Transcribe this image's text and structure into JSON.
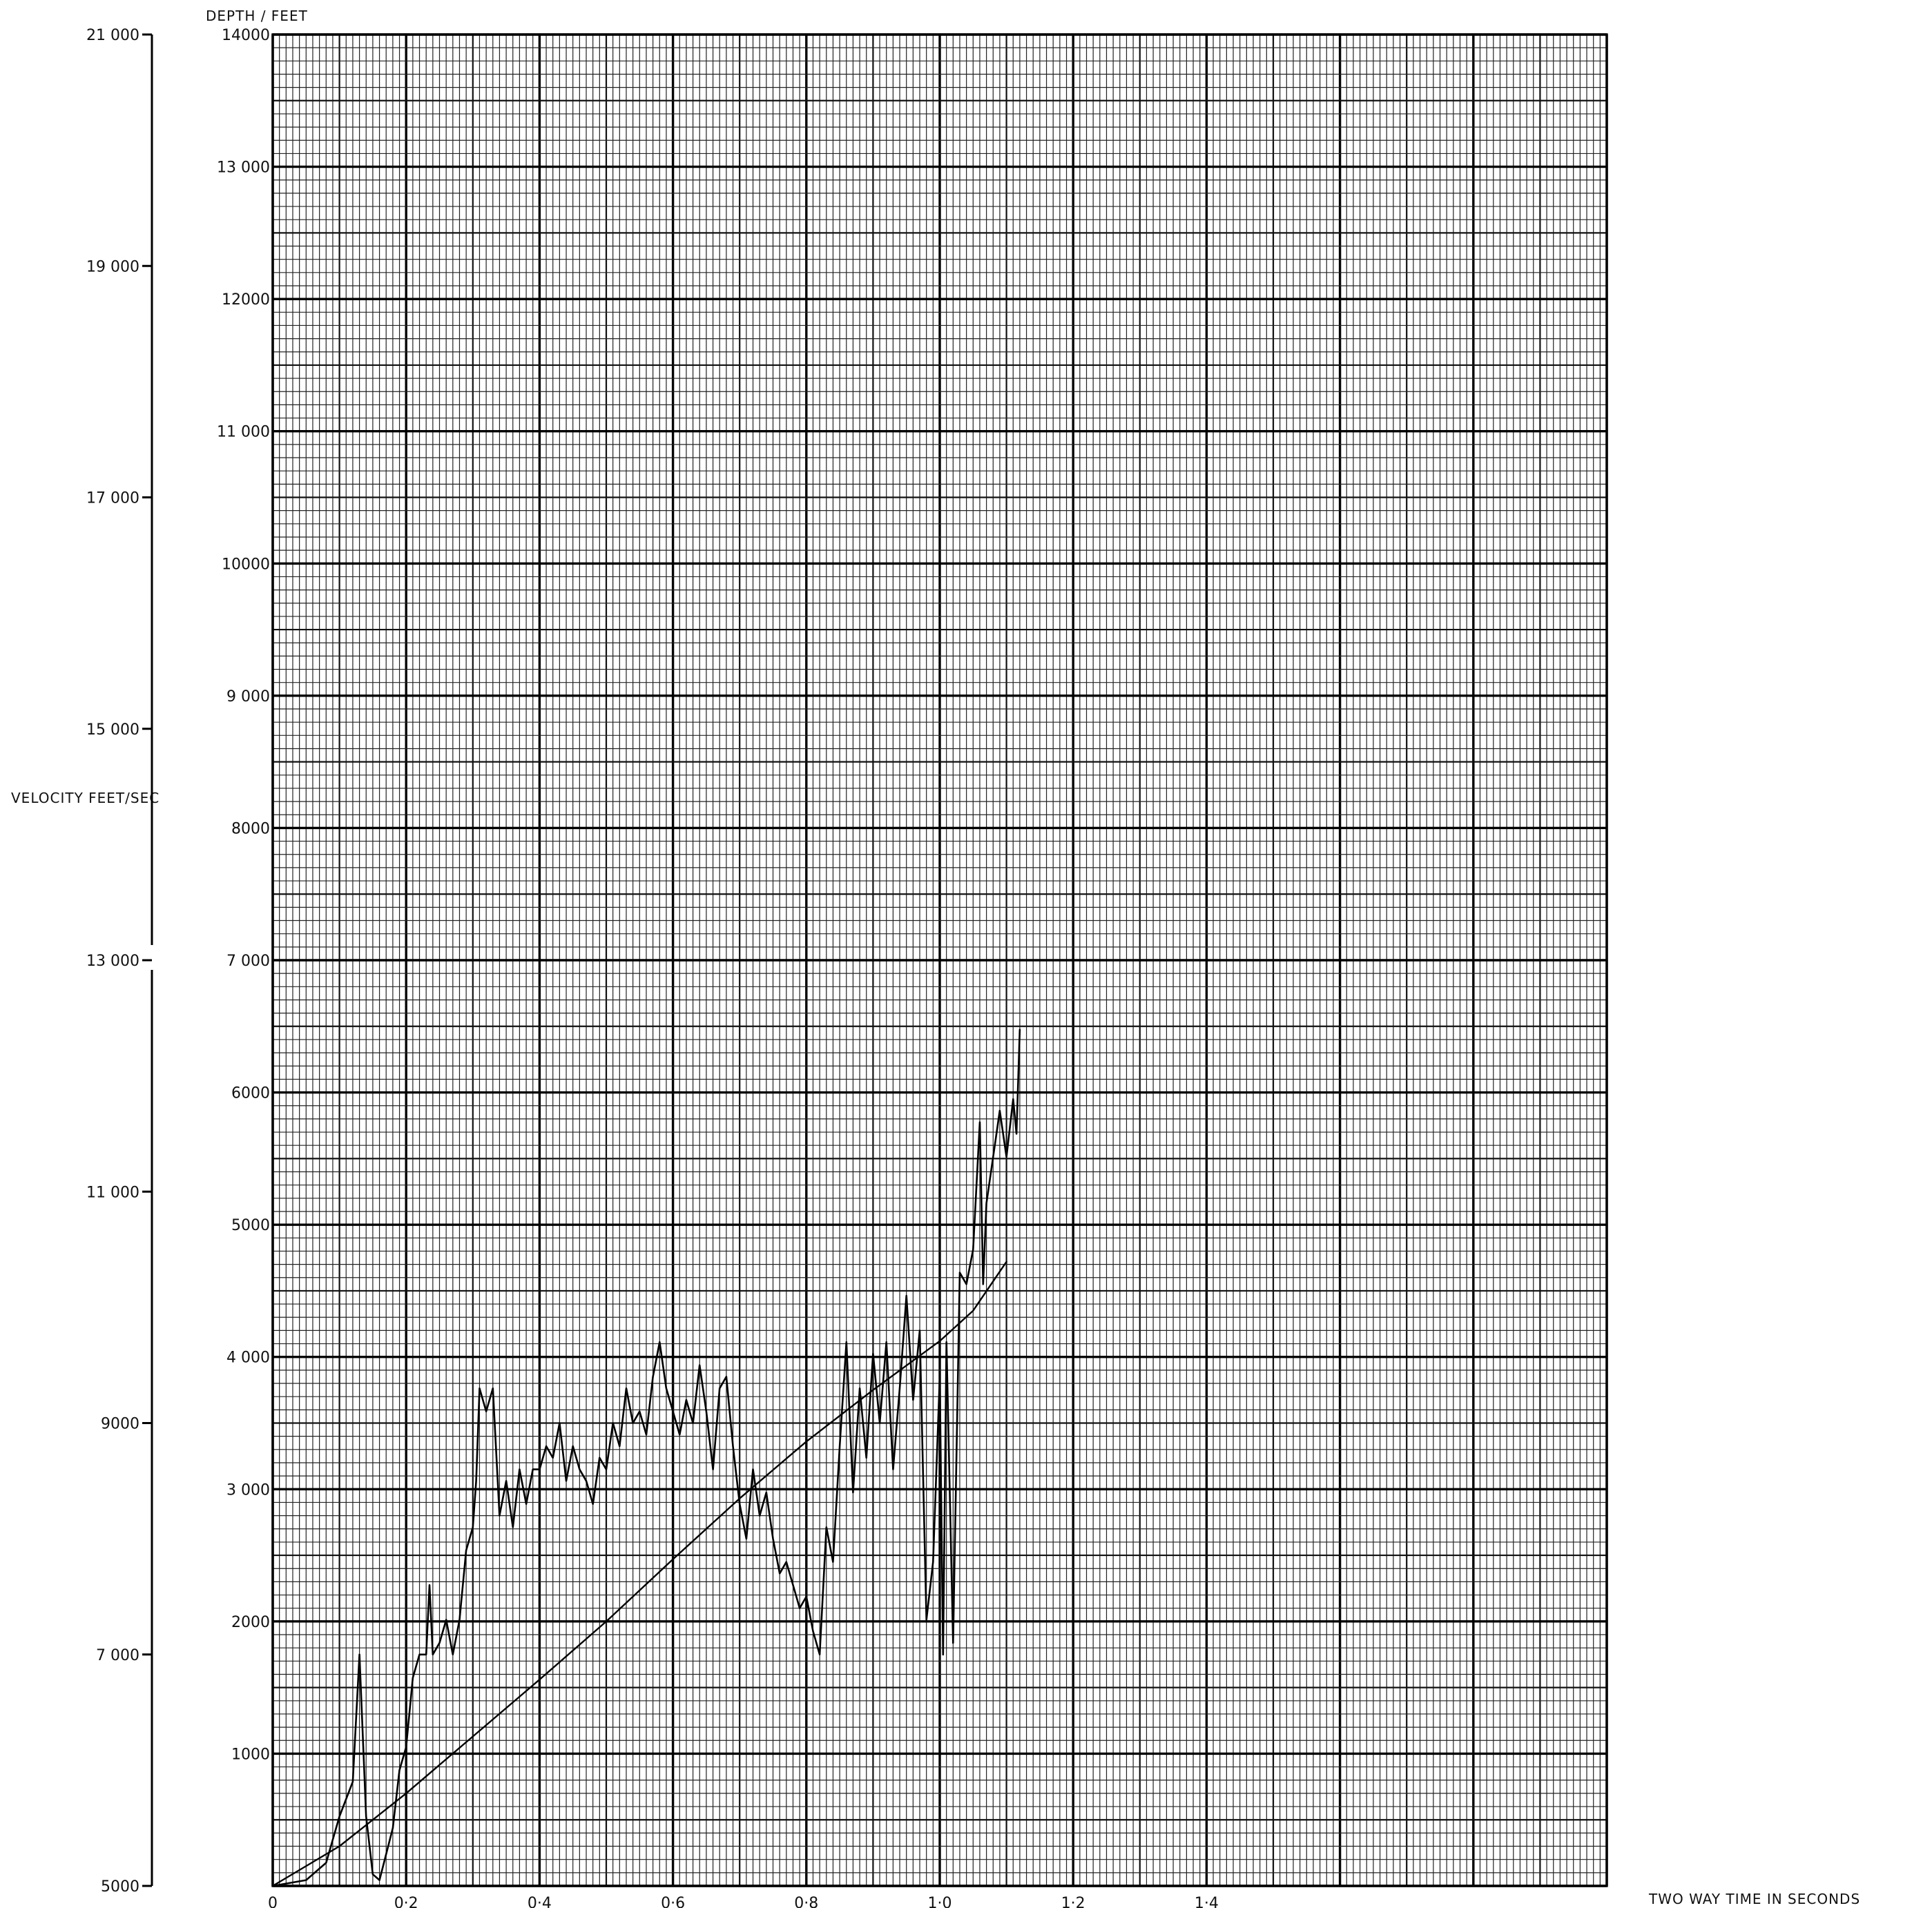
{
  "chart_data": {
    "type": "line",
    "title": "",
    "xlabel": "TWO WAY TIME IN SECONDS",
    "xlim": [
      0,
      2.0
    ],
    "x_ticks": [
      "0",
      "0·2",
      "0·4",
      "0·6",
      "0·8",
      "1·0",
      "1·2",
      "1·4"
    ],
    "x_tick_values": [
      0,
      0.2,
      0.4,
      0.6,
      0.8,
      1.0,
      1.2,
      1.4
    ],
    "grid": true,
    "depth_axis": {
      "label": "DEPTH / FEET",
      "range": [
        0,
        14000
      ],
      "ticks": [
        "1000",
        "2000",
        "3 000",
        "4 000",
        "5000",
        "6000",
        "7 000",
        "8000",
        "9 000",
        "10000",
        "11 000",
        "12000",
        "13 000",
        "14000"
      ],
      "tick_values": [
        1000,
        2000,
        3000,
        4000,
        5000,
        6000,
        7000,
        8000,
        9000,
        10000,
        11000,
        12000,
        13000,
        14000
      ]
    },
    "velocity_axis": {
      "label": "VELOCITY FEET/SEC",
      "range": [
        5000,
        21000
      ],
      "ticks": [
        "5000",
        "7 000",
        "9000",
        "11 000",
        "13 000",
        "15 000",
        "17 000",
        "19 000",
        "21 000"
      ],
      "tick_values": [
        5000,
        7000,
        9000,
        11000,
        13000,
        15000,
        17000,
        19000,
        21000
      ],
      "axis_break_at": 13000
    },
    "series": [
      {
        "axis": "depth",
        "points": [
          [
            0,
            0
          ],
          [
            0.1,
            300
          ],
          [
            0.2,
            700
          ],
          [
            0.3,
            1130
          ],
          [
            0.4,
            1560
          ],
          [
            0.5,
            2000
          ],
          [
            0.6,
            2470
          ],
          [
            0.7,
            2930
          ],
          [
            0.8,
            3360
          ],
          [
            0.9,
            3750
          ],
          [
            1.0,
            4120
          ],
          [
            1.05,
            4350
          ],
          [
            1.1,
            4720
          ]
        ]
      },
      {
        "axis": "velocity",
        "points": [
          [
            0.0,
            5000
          ],
          [
            0.05,
            5050
          ],
          [
            0.08,
            5200
          ],
          [
            0.1,
            5600
          ],
          [
            0.12,
            5900
          ],
          [
            0.13,
            7000
          ],
          [
            0.14,
            5600
          ],
          [
            0.15,
            5100
          ],
          [
            0.16,
            5050
          ],
          [
            0.18,
            5500
          ],
          [
            0.19,
            6000
          ],
          [
            0.2,
            6200
          ],
          [
            0.21,
            6800
          ],
          [
            0.22,
            7000
          ],
          [
            0.23,
            7000
          ],
          [
            0.235,
            7600
          ],
          [
            0.24,
            7000
          ],
          [
            0.25,
            7100
          ],
          [
            0.26,
            7300
          ],
          [
            0.27,
            7000
          ],
          [
            0.28,
            7300
          ],
          [
            0.29,
            7900
          ],
          [
            0.3,
            8100
          ],
          [
            0.305,
            8500
          ],
          [
            0.31,
            9300
          ],
          [
            0.32,
            9100
          ],
          [
            0.33,
            9300
          ],
          [
            0.34,
            8200
          ],
          [
            0.35,
            8500
          ],
          [
            0.36,
            8100
          ],
          [
            0.37,
            8600
          ],
          [
            0.38,
            8300
          ],
          [
            0.39,
            8600
          ],
          [
            0.4,
            8600
          ],
          [
            0.41,
            8800
          ],
          [
            0.42,
            8700
          ],
          [
            0.43,
            9000
          ],
          [
            0.44,
            8500
          ],
          [
            0.45,
            8800
          ],
          [
            0.46,
            8600
          ],
          [
            0.47,
            8500
          ],
          [
            0.48,
            8300
          ],
          [
            0.49,
            8700
          ],
          [
            0.5,
            8600
          ],
          [
            0.51,
            9000
          ],
          [
            0.52,
            8800
          ],
          [
            0.53,
            9300
          ],
          [
            0.54,
            9000
          ],
          [
            0.55,
            9100
          ],
          [
            0.56,
            8900
          ],
          [
            0.57,
            9400
          ],
          [
            0.58,
            9700
          ],
          [
            0.59,
            9300
          ],
          [
            0.6,
            9100
          ],
          [
            0.61,
            8900
          ],
          [
            0.62,
            9200
          ],
          [
            0.63,
            9000
          ],
          [
            0.64,
            9500
          ],
          [
            0.65,
            9100
          ],
          [
            0.66,
            8600
          ],
          [
            0.67,
            9300
          ],
          [
            0.68,
            9400
          ],
          [
            0.69,
            8800
          ],
          [
            0.7,
            8300
          ],
          [
            0.71,
            8000
          ],
          [
            0.72,
            8600
          ],
          [
            0.73,
            8200
          ],
          [
            0.74,
            8400
          ],
          [
            0.75,
            8000
          ],
          [
            0.76,
            7700
          ],
          [
            0.77,
            7800
          ],
          [
            0.78,
            7600
          ],
          [
            0.79,
            7400
          ],
          [
            0.8,
            7500
          ],
          [
            0.81,
            7200
          ],
          [
            0.82,
            7000
          ],
          [
            0.83,
            8100
          ],
          [
            0.84,
            7800
          ],
          [
            0.85,
            8800
          ],
          [
            0.86,
            9700
          ],
          [
            0.87,
            8400
          ],
          [
            0.88,
            9300
          ],
          [
            0.89,
            8700
          ],
          [
            0.9,
            9600
          ],
          [
            0.91,
            9000
          ],
          [
            0.92,
            9700
          ],
          [
            0.93,
            8600
          ],
          [
            0.94,
            9300
          ],
          [
            0.95,
            10100
          ],
          [
            0.96,
            9200
          ],
          [
            0.97,
            9800
          ],
          [
            0.98,
            7300
          ],
          [
            0.99,
            7800
          ],
          [
            1.0,
            9400
          ],
          [
            1.005,
            7000
          ],
          [
            1.01,
            9700
          ],
          [
            1.02,
            7100
          ],
          [
            1.03,
            10300
          ],
          [
            1.04,
            10200
          ],
          [
            1.05,
            10500
          ],
          [
            1.06,
            11600
          ],
          [
            1.065,
            10200
          ],
          [
            1.07,
            10900
          ],
          [
            1.08,
            11300
          ],
          [
            1.09,
            11700
          ],
          [
            1.1,
            11300
          ],
          [
            1.11,
            11800
          ],
          [
            1.115,
            11500
          ],
          [
            1.12,
            12400
          ]
        ]
      }
    ]
  }
}
